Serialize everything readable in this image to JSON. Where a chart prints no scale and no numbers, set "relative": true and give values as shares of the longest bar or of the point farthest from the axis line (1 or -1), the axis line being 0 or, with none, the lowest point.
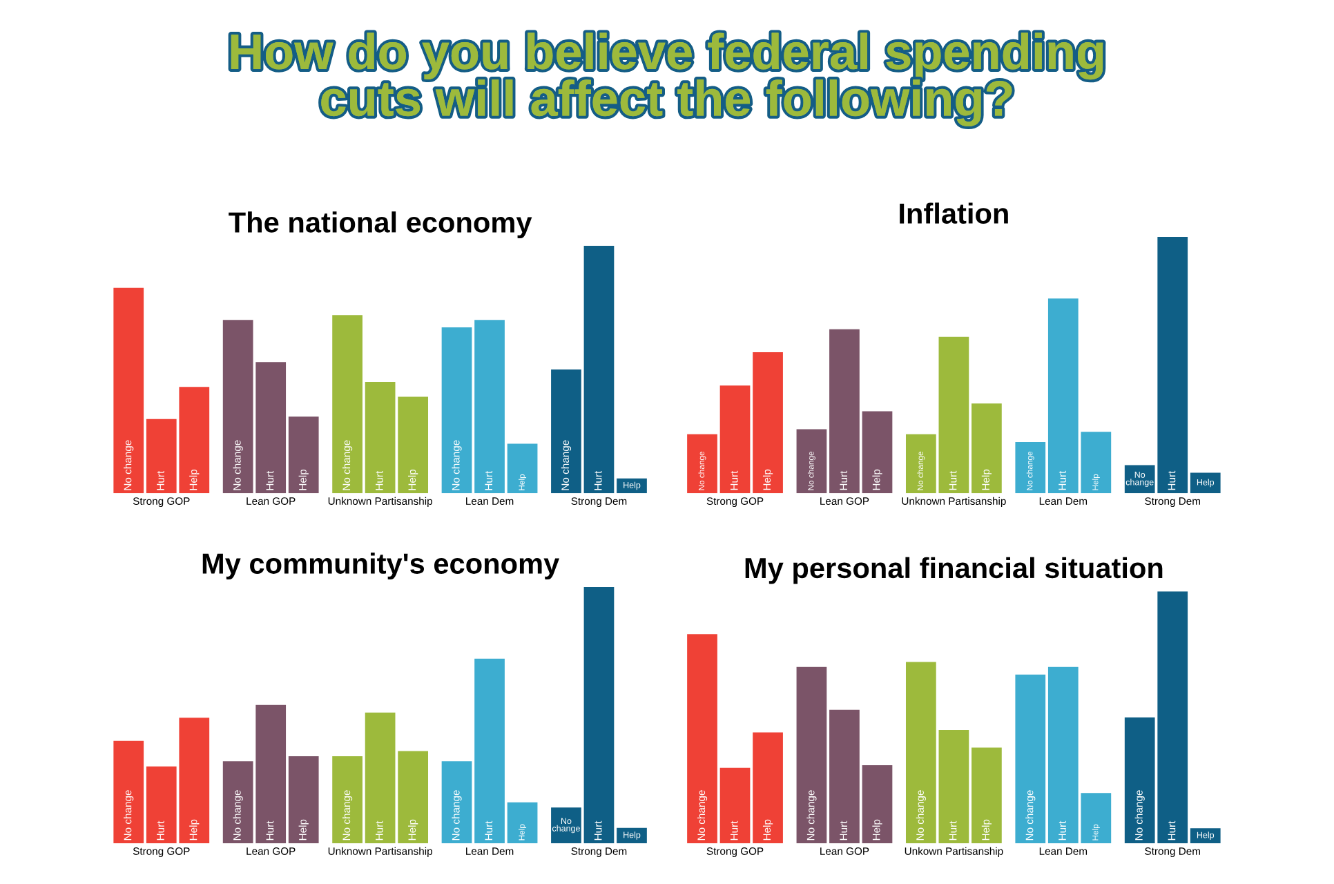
{
  "chart_data": [
    {
      "type": "bar",
      "title": "The national economy",
      "annotations": [
        "How do you believe federal spending cuts will affect the following?"
      ],
      "relative": true,
      "categories": [
        "Strong GOP",
        "Lean GOP",
        "Unknown Partisanship",
        "Lean Dem",
        "Strong Dem"
      ],
      "series": [
        {
          "name": "No change",
          "colors": [
            "#ef4136",
            "#7b5468",
            "#9dba3c",
            "#3dadd0",
            "#0f5f86"
          ],
          "values": [
            0.83,
            0.7,
            0.72,
            0.67,
            0.5
          ]
        },
        {
          "name": "Hurt",
          "colors": [
            "#ef4136",
            "#7b5468",
            "#9dba3c",
            "#3dadd0",
            "#0f5f86"
          ],
          "values": [
            0.3,
            0.53,
            0.45,
            0.7,
            1
          ]
        },
        {
          "name": "Help",
          "colors": [
            "#ef4136",
            "#7b5468",
            "#9dba3c",
            "#3dadd0",
            "#0f5f86"
          ],
          "values": [
            0.43,
            0.31,
            0.39,
            0.2,
            0.06
          ]
        }
      ]
    },
    {
      "type": "bar",
      "title": "Inflation",
      "relative": true,
      "categories": [
        "Strong GOP",
        "Lean GOP",
        "Unknown Partisanship",
        "Lean Dem",
        "Strong Dem"
      ],
      "series": [
        {
          "name": "No change",
          "colors": [
            "#ef4136",
            "#7b5468",
            "#9dba3c",
            "#3dadd0",
            "#0f5f86"
          ],
          "values": [
            0.23,
            0.25,
            0.23,
            0.2,
            0.11
          ]
        },
        {
          "name": "Hurt",
          "colors": [
            "#ef4136",
            "#7b5468",
            "#9dba3c",
            "#3dadd0",
            "#0f5f86"
          ],
          "values": [
            0.42,
            0.64,
            0.61,
            0.76,
            1
          ]
        },
        {
          "name": "Help",
          "colors": [
            "#ef4136",
            "#7b5468",
            "#9dba3c",
            "#3dadd0",
            "#0f5f86"
          ],
          "values": [
            0.55,
            0.32,
            0.35,
            0.24,
            0.08
          ]
        }
      ]
    },
    {
      "type": "bar",
      "title": "My community's economy",
      "relative": true,
      "categories": [
        "Strong GOP",
        "Lean GOP",
        "Unknown Partisanship",
        "Lean Dem",
        "Strong Dem"
      ],
      "series": [
        {
          "name": "No change",
          "colors": [
            "#ef4136",
            "#7b5468",
            "#9dba3c",
            "#3dadd0",
            "#0f5f86"
          ],
          "values": [
            0.4,
            0.32,
            0.34,
            0.32,
            0.14
          ]
        },
        {
          "name": "Hurt",
          "colors": [
            "#ef4136",
            "#7b5468",
            "#9dba3c",
            "#3dadd0",
            "#0f5f86"
          ],
          "values": [
            0.3,
            0.54,
            0.51,
            0.72,
            1
          ]
        },
        {
          "name": "Help",
          "colors": [
            "#ef4136",
            "#7b5468",
            "#9dba3c",
            "#3dadd0",
            "#0f5f86"
          ],
          "values": [
            0.49,
            0.34,
            0.36,
            0.16,
            0.06
          ]
        }
      ]
    },
    {
      "type": "bar",
      "title": "My personal financial situation",
      "relative": true,
      "categories": [
        "Strong GOP",
        "Lean GOP",
        "Unkown Partisanship",
        "Lean Dem",
        "Strong Dem"
      ],
      "series": [
        {
          "name": "No change",
          "colors": [
            "#ef4136",
            "#7b5468",
            "#9dba3c",
            "#3dadd0",
            "#0f5f86"
          ],
          "values": [
            0.83,
            0.7,
            0.72,
            0.67,
            0.5
          ]
        },
        {
          "name": "Hurt",
          "colors": [
            "#ef4136",
            "#7b5468",
            "#9dba3c",
            "#3dadd0",
            "#0f5f86"
          ],
          "values": [
            0.3,
            0.53,
            0.45,
            0.7,
            1
          ]
        },
        {
          "name": "Help",
          "colors": [
            "#ef4136",
            "#7b5468",
            "#9dba3c",
            "#3dadd0",
            "#0f5f86"
          ],
          "values": [
            0.44,
            0.31,
            0.38,
            0.2,
            0.06
          ]
        }
      ]
    }
  ]
}
